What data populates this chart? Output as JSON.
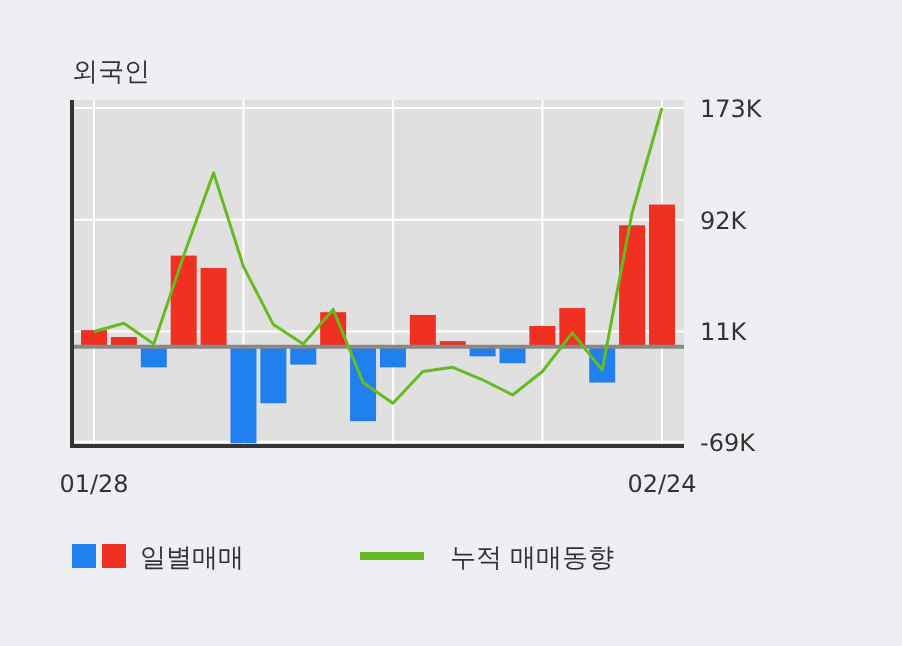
{
  "chart_data": {
    "type": "bar",
    "title": "외국인",
    "categories": [
      "01/28",
      null,
      null,
      null,
      null,
      null,
      null,
      null,
      null,
      null,
      null,
      null,
      null,
      null,
      null,
      null,
      null,
      null,
      null,
      "02/24"
    ],
    "series": [
      {
        "name": "일별매매",
        "colors": [
          "#f03020",
          "#f03020",
          "#2080f0",
          "#f03020",
          "#f03020",
          "#2080f0",
          "#2080f0",
          "#2080f0",
          "#f03020",
          "#2080f0",
          "#2080f0",
          "#f03020",
          "#f03020",
          "#2080f0",
          "#2080f0",
          "#f03020",
          "#f03020",
          "#2080f0",
          "#f03020",
          "#f03020"
        ],
        "values": [
          12,
          7,
          -15,
          66,
          57,
          -70,
          -41,
          -13,
          25,
          -54,
          -15,
          23,
          4,
          -7,
          -12,
          15,
          28,
          -26,
          88,
          103
        ]
      },
      {
        "name": "누적 매매동향",
        "type": "line",
        "color": "#66bb22",
        "values": [
          11,
          17,
          2,
          66,
          126,
          58,
          16,
          2,
          27,
          -26,
          -41,
          -18,
          -15,
          -24,
          -35,
          -18,
          10,
          -17,
          97,
          173
        ]
      }
    ],
    "ylim": [
      -72,
      173
    ],
    "yticks": [
      {
        "value": 173,
        "label": "173K"
      },
      {
        "value": 92,
        "label": "92K"
      },
      {
        "value": 11,
        "label": "11K"
      },
      {
        "value": -69,
        "label": "-69K"
      }
    ],
    "grid": true,
    "legend": "bottom"
  }
}
